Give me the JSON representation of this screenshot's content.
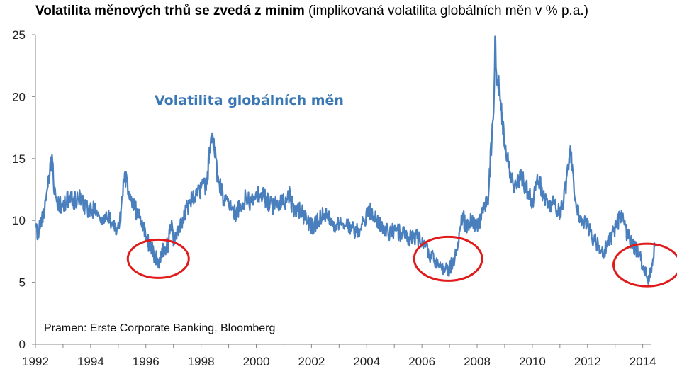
{
  "title": {
    "bold": "Volatilita měnových trhů se zvedá z minim",
    "normal": "(implikovaná volatilita globálních měn v % p.a.)"
  },
  "source": "Pramen: Erste Corporate Banking, Bloomberg",
  "colors": {
    "line": "#4a7fbd",
    "highlight_ellipse": "#e01b1b",
    "series_label": "#3a78b5"
  },
  "chart_data": {
    "type": "line",
    "title": "Volatilita měnových trhů se zvedá z minim (implikovaná volatilita globálních měn v % p.a.)",
    "xlabel": "",
    "ylabel": "",
    "xlim": [
      1992,
      2014.6
    ],
    "ylim": [
      0,
      25
    ],
    "x_ticks": [
      "1992",
      "1994",
      "1996",
      "1998",
      "2000",
      "2002",
      "2004",
      "2006",
      "2008",
      "2010",
      "2012",
      "2014"
    ],
    "y_ticks": [
      "0",
      "5",
      "10",
      "15",
      "20",
      "25"
    ],
    "grid": false,
    "annotations": [
      "Volatilita globálních měn"
    ],
    "highlight_regions": [
      {
        "x": 1996.45,
        "y": 6.9
      },
      {
        "x": 2006.95,
        "y": 6.9
      },
      {
        "x": 2014.15,
        "y": 6.4
      }
    ],
    "series": [
      {
        "name": "Volatilita globálních měn",
        "x": [
          1992.0,
          1992.1,
          1992.2,
          1992.3,
          1992.4,
          1992.5,
          1992.6,
          1992.7,
          1992.8,
          1993.0,
          1993.2,
          1993.4,
          1993.6,
          1993.8,
          1994.0,
          1994.2,
          1994.4,
          1994.6,
          1994.8,
          1995.0,
          1995.1,
          1995.2,
          1995.3,
          1995.4,
          1995.5,
          1995.7,
          1995.9,
          1996.0,
          1996.2,
          1996.3,
          1996.4,
          1996.5,
          1996.6,
          1996.8,
          1996.9,
          1997.0,
          1997.2,
          1997.4,
          1997.6,
          1997.8,
          1998.0,
          1998.2,
          1998.4,
          1998.5,
          1998.6,
          1998.7,
          1998.8,
          1999.0,
          1999.2,
          1999.4,
          1999.6,
          1999.8,
          2000.0,
          2000.2,
          2000.4,
          2000.6,
          2000.8,
          2001.0,
          2001.2,
          2001.4,
          2001.6,
          2001.8,
          2002.0,
          2002.2,
          2002.4,
          2002.6,
          2002.8,
          2003.0,
          2003.2,
          2003.4,
          2003.6,
          2003.8,
          2004.0,
          2004.2,
          2004.4,
          2004.6,
          2004.8,
          2005.0,
          2005.2,
          2005.4,
          2005.6,
          2005.8,
          2006.0,
          2006.2,
          2006.4,
          2006.6,
          2006.8,
          2007.0,
          2007.2,
          2007.4,
          2007.5,
          2007.6,
          2007.8,
          2008.0,
          2008.2,
          2008.4,
          2008.6,
          2008.65,
          2008.7,
          2008.8,
          2008.9,
          2009.0,
          2009.2,
          2009.4,
          2009.6,
          2009.8,
          2010.0,
          2010.2,
          2010.4,
          2010.6,
          2010.8,
          2011.0,
          2011.2,
          2011.4,
          2011.5,
          2011.6,
          2011.8,
          2012.0,
          2012.2,
          2012.4,
          2012.6,
          2012.8,
          2013.0,
          2013.2,
          2013.4,
          2013.6,
          2013.8,
          2014.0,
          2014.1,
          2014.2,
          2014.3,
          2014.4,
          2014.5
        ],
        "values": [
          9.3,
          9.0,
          9.8,
          10.5,
          12.2,
          13.5,
          14.8,
          12.0,
          11.5,
          11.2,
          11.8,
          11.5,
          12.0,
          11.0,
          10.8,
          11.0,
          10.2,
          10.5,
          9.5,
          9.2,
          10.5,
          13.5,
          13.2,
          12.5,
          11.5,
          10.5,
          9.5,
          8.5,
          7.8,
          7.2,
          6.9,
          6.6,
          7.6,
          8.0,
          9.8,
          8.5,
          9.5,
          10.5,
          11.5,
          12.2,
          12.5,
          13.0,
          17.2,
          15.5,
          13.5,
          12.8,
          11.8,
          11.5,
          10.5,
          11.0,
          11.8,
          11.5,
          12.0,
          12.2,
          11.5,
          11.2,
          11.5,
          11.5,
          12.0,
          10.5,
          11.0,
          10.0,
          9.5,
          9.8,
          10.5,
          10.2,
          9.5,
          9.8,
          10.0,
          9.5,
          9.2,
          9.5,
          10.5,
          10.8,
          10.0,
          9.5,
          9.0,
          9.2,
          9.0,
          8.8,
          8.5,
          8.6,
          8.3,
          7.5,
          7.0,
          6.5,
          6.2,
          6.1,
          7.0,
          9.5,
          10.2,
          9.5,
          10.0,
          9.5,
          10.5,
          12.0,
          19.0,
          24.8,
          22.0,
          20.5,
          18.5,
          16.0,
          14.0,
          12.5,
          13.5,
          12.5,
          11.5,
          13.5,
          12.0,
          11.0,
          11.5,
          10.5,
          12.5,
          15.5,
          12.5,
          11.0,
          10.0,
          9.5,
          8.5,
          8.0,
          7.5,
          8.5,
          9.2,
          10.5,
          9.0,
          8.2,
          7.5,
          6.5,
          6.0,
          5.4,
          5.8,
          7.5,
          8.0
        ]
      }
    ]
  }
}
